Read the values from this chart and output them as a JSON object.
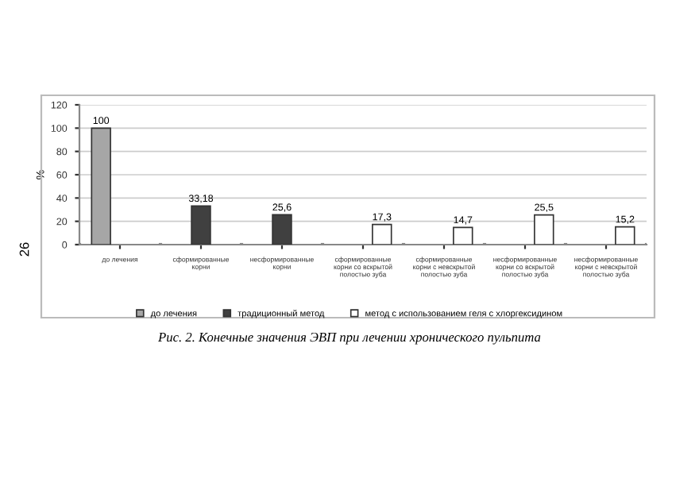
{
  "chart_data": {
    "type": "bar",
    "ylabel": "%",
    "categories": [
      "до лечения",
      "сформированные\nкорни",
      "несформированные\nкорни",
      "сформированные\nкорни со вскрытой\nполостью зуба",
      "сформированные\nкорни с невскрытой\nполостью зуба",
      "несформированные\nкорни со вскрытой\nполостью зуба",
      "несформированные\nкорни с невскрытой\nполостью зуба"
    ],
    "series": [
      {
        "name": "до лечения",
        "color": "#a6a6a6",
        "values": [
          100,
          null,
          null,
          null,
          null,
          null,
          null
        ],
        "value_labels": [
          "100",
          null,
          null,
          null,
          null,
          null,
          null
        ]
      },
      {
        "name": "традиционный метод",
        "color": "#404040",
        "values": [
          null,
          33.18,
          25.6,
          null,
          null,
          null,
          null
        ],
        "value_labels": [
          null,
          "33,18",
          "25,6",
          null,
          null,
          null,
          null
        ]
      },
      {
        "name": "метод с использованием геля с хлоргексидином",
        "color": "#ffffff",
        "values": [
          null,
          null,
          null,
          17.3,
          14.7,
          25.5,
          15.2
        ],
        "value_labels": [
          null,
          null,
          null,
          "17,3",
          "14,7",
          "25,5",
          "15,2"
        ]
      }
    ],
    "ylim": [
      0,
      120
    ],
    "yticks": [
      0,
      20,
      40,
      60,
      80,
      100,
      120
    ],
    "grid": "y",
    "legend": "bottom",
    "annotations": [
      "Рис. 2. Конечные значения ЭВП при лечении хронического пульпита",
      "26"
    ]
  }
}
